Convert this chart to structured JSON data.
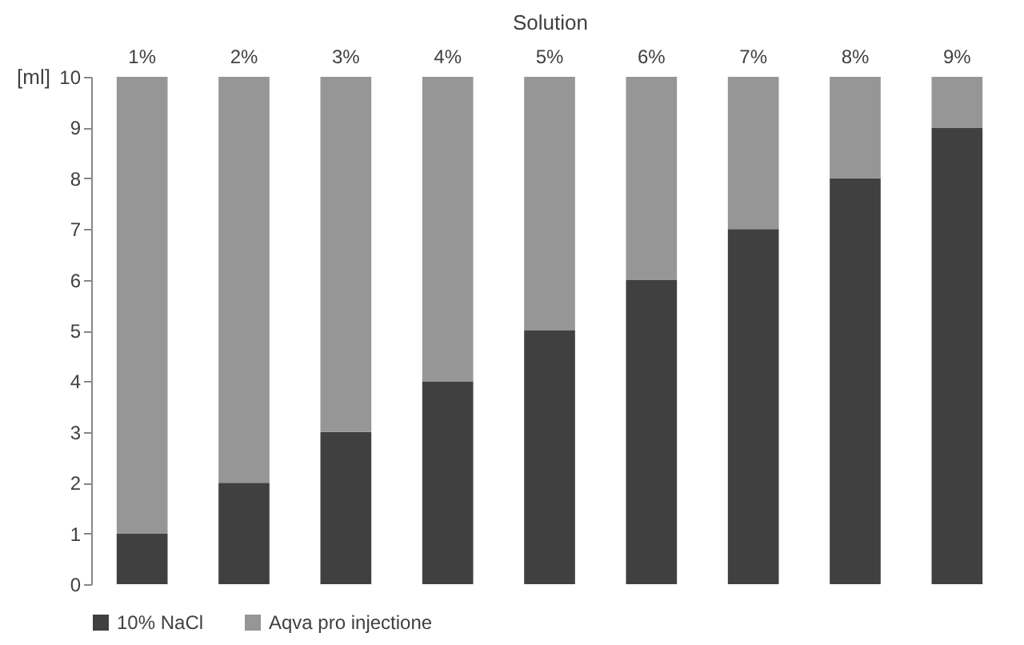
{
  "chart_data": {
    "type": "bar",
    "xlabel": "Solution",
    "ylabel": "[ml]",
    "categories": [
      "1%",
      "2%",
      "3%",
      "4%",
      "5%",
      "6%",
      "7%",
      "8%",
      "9%"
    ],
    "series": [
      {
        "name": "10% NaCl",
        "color": "#404040",
        "values": [
          1,
          2,
          3,
          4,
          5,
          6,
          7,
          8,
          9
        ]
      },
      {
        "name": "Aqva pro injectione",
        "color": "#969696",
        "values": [
          9,
          8,
          7,
          6,
          5,
          4,
          3,
          2,
          1
        ]
      }
    ],
    "stacked": true,
    "ylim": [
      0,
      10
    ],
    "yticks": [
      0,
      1,
      2,
      3,
      4,
      5,
      6,
      7,
      8,
      9,
      10
    ],
    "grid": false,
    "legend": "bottom"
  }
}
